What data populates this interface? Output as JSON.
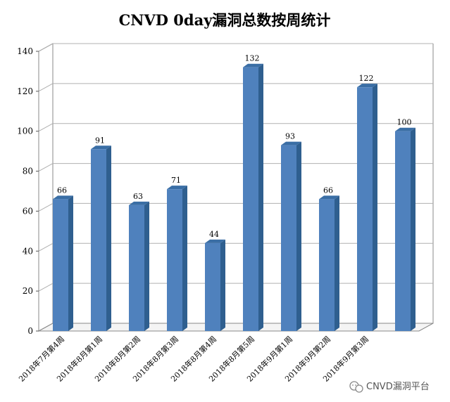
{
  "chart_data": {
    "type": "bar",
    "title": "CNVD 0day漏洞总数按周统计",
    "categories": [
      "2018年7月第4周",
      "2018年8月第1周",
      "2018年8月第2周",
      "2018年8月第3周",
      "2018年8月第4周",
      "2018年8月第5周",
      "2018年9月第1周",
      "2018年9月第2周",
      "2018年9月第3周",
      ""
    ],
    "values": [
      66,
      91,
      63,
      71,
      44,
      132,
      93,
      66,
      122,
      100
    ],
    "ylim": [
      0,
      140
    ],
    "yticks": [
      0,
      20,
      40,
      60,
      80,
      100,
      120,
      140
    ],
    "grid": true,
    "legend": "none",
    "xlabel": "",
    "ylabel": "",
    "colors": {
      "bar_front": "#4f81bd",
      "bar_side": "#2f5f8f",
      "bar_top": "#3a6ea5",
      "grid": "#b0b0b0",
      "wall": "#888888"
    }
  },
  "watermark": {
    "text": "CNVD漏洞平台",
    "icon": "wechat-icon"
  }
}
